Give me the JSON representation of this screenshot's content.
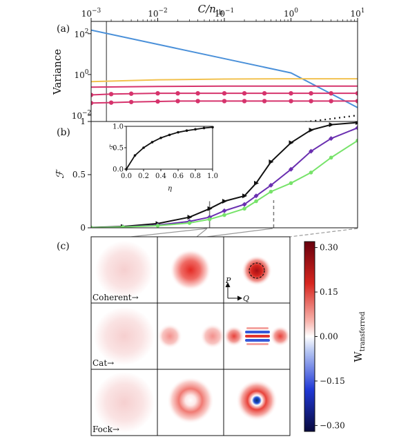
{
  "panel_labels": {
    "a": "(a)",
    "b": "(b)",
    "c": "(c)"
  },
  "colors": {
    "blue": "#4a90d9",
    "orange": "#f2c14e",
    "magenta": "#d6336c",
    "black": "#111111",
    "purple": "#6a2fb0",
    "green": "#77e36a",
    "grey_marker": "#777777"
  },
  "top_axis": {
    "label": "C/n_th",
    "ticks": [
      {
        "base": "10",
        "exp": "−3",
        "value": 0.001
      },
      {
        "base": "10",
        "exp": "−2",
        "value": 0.01
      },
      {
        "base": "10",
        "exp": "−1",
        "value": 0.1
      },
      {
        "base": "10",
        "exp": "0",
        "value": 1
      },
      {
        "base": "10",
        "exp": "1",
        "value": 10
      }
    ]
  },
  "chart_data": [
    {
      "panel": "(a)",
      "type": "line",
      "xscale": "log",
      "yscale": "log",
      "xlim": [
        0.001,
        10
      ],
      "ylim": [
        0.005,
        400
      ],
      "ylabel": "Variance",
      "yticks": [
        {
          "base": "10",
          "exp": "2",
          "value": 100
        },
        {
          "base": "10",
          "exp": "0",
          "value": 1
        },
        {
          "base": "10",
          "exp": "−2",
          "value": 0.01
        }
      ],
      "marker_line_x": 0.0017,
      "series": [
        {
          "color": "#4a90d9",
          "marker": "none",
          "x": [
            0.001,
            0.01,
            0.1,
            1,
            10
          ],
          "y": [
            150,
            30,
            6,
            1.2,
            0.024
          ]
        },
        {
          "color": "#f2c14e",
          "marker": "none",
          "x": [
            0.001,
            0.01,
            0.1,
            1,
            10
          ],
          "y": [
            0.45,
            0.55,
            0.6,
            0.62,
            0.62
          ]
        },
        {
          "color": "#d6336c",
          "marker": "none",
          "x": [
            0.001,
            0.01,
            0.1,
            1,
            10
          ],
          "y": [
            0.24,
            0.26,
            0.27,
            0.27,
            0.27
          ]
        },
        {
          "color": "#d6336c",
          "marker": "circle",
          "x": [
            0.001,
            0.002,
            0.004,
            0.01,
            0.02,
            0.04,
            0.1,
            0.2,
            0.4,
            1,
            2,
            4,
            10
          ],
          "y": [
            0.1,
            0.11,
            0.115,
            0.12,
            0.12,
            0.12,
            0.12,
            0.12,
            0.12,
            0.12,
            0.12,
            0.12,
            0.12
          ]
        },
        {
          "color": "#d6336c",
          "marker": "circle",
          "x": [
            0.001,
            0.002,
            0.004,
            0.01,
            0.02,
            0.04,
            0.1,
            0.2,
            0.4,
            1,
            2,
            4,
            10
          ],
          "y": [
            0.04,
            0.042,
            0.045,
            0.048,
            0.05,
            0.05,
            0.05,
            0.05,
            0.05,
            0.05,
            0.05,
            0.05,
            0.05
          ]
        }
      ],
      "dotted_line": {
        "color": "#111111",
        "x": [
          1,
          3,
          10
        ],
        "y": [
          0.004,
          0.006,
          0.01
        ]
      }
    },
    {
      "panel": "(b)",
      "type": "line",
      "xscale": "log",
      "xlim": [
        0.001,
        10
      ],
      "ylim": [
        0,
        1
      ],
      "ylabel": "ℱ",
      "yticks": [
        {
          "label": "1",
          "value": 1
        },
        {
          "label": "0.5",
          "value": 0.5
        },
        {
          "label": "0",
          "value": 0
        }
      ],
      "markers": [
        {
          "x": 0.06,
          "from": 0,
          "to": 0.25,
          "style": "solid"
        },
        {
          "x": 0.55,
          "from": 0,
          "to": 0.26,
          "style": "dashed"
        }
      ],
      "series": [
        {
          "color": "#111111",
          "marker": "triangle",
          "x": [
            0.001,
            0.003,
            0.01,
            0.03,
            0.06,
            0.1,
            0.2,
            0.3,
            0.5,
            1,
            2,
            4,
            10
          ],
          "y": [
            0.003,
            0.012,
            0.04,
            0.1,
            0.18,
            0.25,
            0.3,
            0.42,
            0.62,
            0.8,
            0.92,
            0.97,
            0.99
          ]
        },
        {
          "color": "#6a2fb0",
          "marker": "diamond",
          "x": [
            0.001,
            0.003,
            0.01,
            0.03,
            0.06,
            0.1,
            0.2,
            0.3,
            0.5,
            1,
            2,
            4,
            10
          ],
          "y": [
            0.002,
            0.008,
            0.025,
            0.06,
            0.1,
            0.16,
            0.22,
            0.3,
            0.4,
            0.55,
            0.72,
            0.84,
            0.94
          ]
        },
        {
          "color": "#77e36a",
          "marker": "circle",
          "x": [
            0.001,
            0.003,
            0.01,
            0.03,
            0.06,
            0.1,
            0.2,
            0.3,
            0.5,
            1,
            2,
            4,
            10
          ],
          "y": [
            0.002,
            0.007,
            0.02,
            0.045,
            0.08,
            0.12,
            0.18,
            0.25,
            0.34,
            0.42,
            0.52,
            0.66,
            0.82
          ]
        }
      ]
    },
    {
      "panel": "(b) inset",
      "type": "line",
      "xlim": [
        0,
        1
      ],
      "ylim": [
        0,
        1
      ],
      "xlabel": "η",
      "ylabel": "ℱ",
      "xticks": [
        "0.0",
        "0.2",
        "0.4",
        "0.6",
        "0.8",
        "1.0"
      ],
      "yticks": [
        "0.0",
        "0.5",
        "1.0"
      ],
      "series": [
        {
          "color": "#111111",
          "marker": "dot",
          "x": [
            0,
            0.1,
            0.2,
            0.3,
            0.4,
            0.5,
            0.6,
            0.7,
            0.8,
            0.9,
            1.0
          ],
          "y": [
            0.0,
            0.32,
            0.5,
            0.63,
            0.73,
            0.8,
            0.86,
            0.9,
            0.93,
            0.96,
            0.98
          ]
        }
      ]
    },
    {
      "panel": "(c)",
      "type": "heatmap",
      "rows": [
        "Coherent→",
        "Cat→",
        "Fock→"
      ],
      "columns": 3,
      "colorbar": {
        "label": "W",
        "label_sub": "transferred",
        "range": [
          -0.32,
          0.32
        ],
        "ticks": [
          "0.30",
          "0.15",
          "0.00",
          "−0.15",
          "−0.30"
        ],
        "tick_values": [
          0.3,
          0.15,
          0.0,
          -0.15,
          -0.3
        ]
      },
      "axes_inset": {
        "p": "P",
        "q": "Q"
      }
    }
  ]
}
